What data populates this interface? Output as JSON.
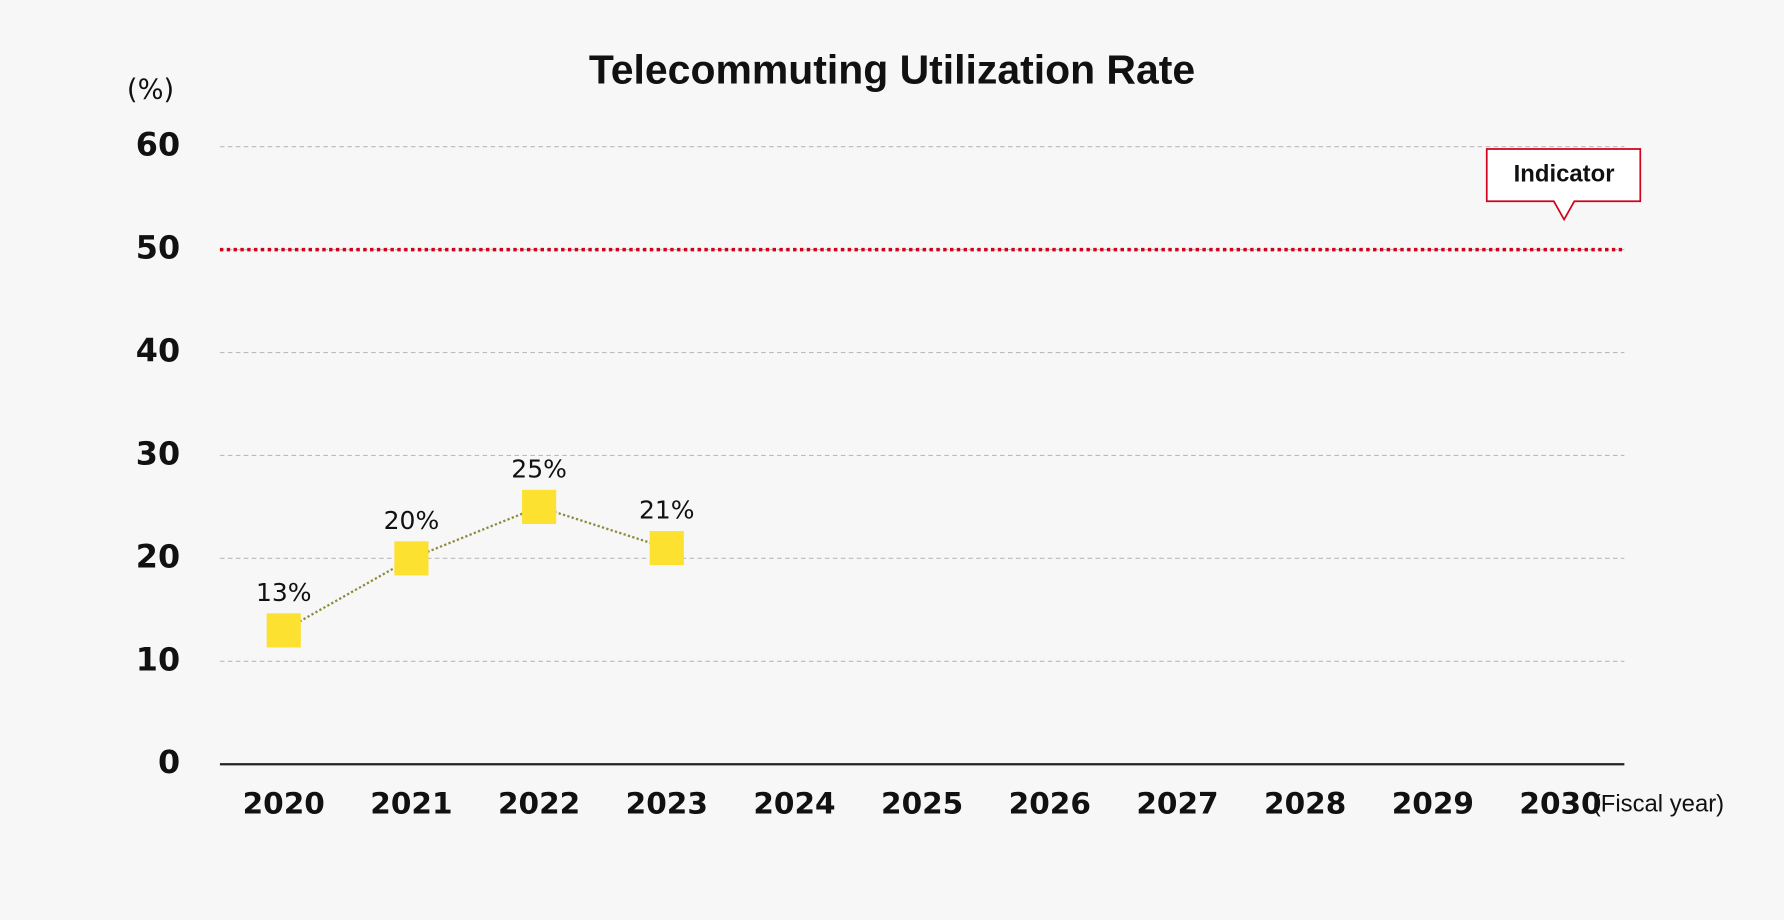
{
  "chart_data": {
    "type": "line",
    "title": "Telecommuting Utilization Rate",
    "y_label": "(%)",
    "x_label": "(Fiscal year)",
    "categories": [
      "2020",
      "2021",
      "2022",
      "2023",
      "2024",
      "2025",
      "2026",
      "2027",
      "2028",
      "2029",
      "2030"
    ],
    "series": [
      {
        "name": "Telecommuting Utilization Rate",
        "color": "#fde130",
        "values": [
          13,
          20,
          25,
          21,
          null,
          null,
          null,
          null,
          null,
          null,
          null
        ],
        "value_labels": [
          "13%",
          "20%",
          "25%",
          "21%",
          null,
          null,
          null,
          null,
          null,
          null,
          null
        ]
      }
    ],
    "indicator": {
      "label": "Indicator",
      "value": 50,
      "color": "#d0021b"
    },
    "ylim": [
      0,
      60
    ],
    "yticks": [
      0,
      10,
      20,
      30,
      40,
      50,
      60
    ],
    "grid": true
  }
}
